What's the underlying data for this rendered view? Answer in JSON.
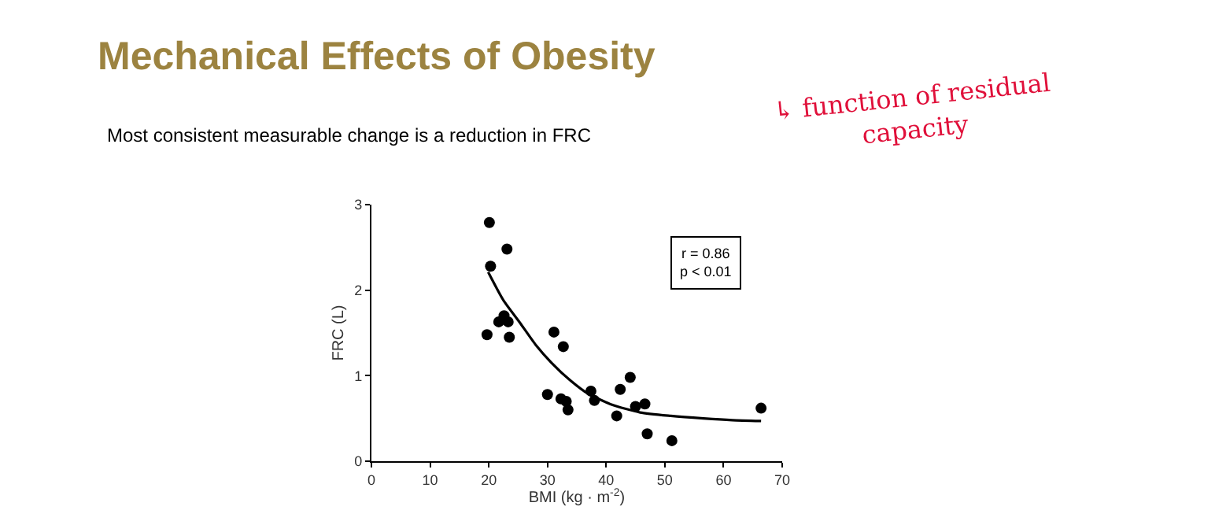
{
  "chart_data": {
    "type": "scatter",
    "title": "Mechanical Effects of Obesity",
    "subtitle": "Most consistent measurable change is a reduction in FRC",
    "xlabel": "BMI (kg · m$^{-2}$)",
    "ylabel": "FRC (L)",
    "xlim": [
      0,
      70
    ],
    "xticks": [
      0,
      10,
      20,
      30,
      40,
      50,
      60,
      70
    ],
    "ylim": [
      0,
      3
    ],
    "yticks": [
      0,
      1,
      2,
      3
    ],
    "marker": "circle",
    "annotations": [
      "r = 0.86\np < 0.01",
      "↳ function of residual\ncapacity"
    ],
    "series": [
      {
        "color": "#000000",
        "x": [
          20.1,
          23.1,
          20.3,
          19.7,
          21.7,
          22.6,
          23.3,
          23.5,
          31.1,
          32.7,
          30.0,
          32.3,
          33.2,
          33.5,
          37.4,
          38.0,
          42.4,
          44.1,
          41.8,
          45.0,
          46.6,
          47.0,
          51.2,
          66.4
        ],
        "values": [
          2.79,
          2.48,
          2.28,
          1.48,
          1.63,
          1.7,
          1.63,
          1.45,
          1.51,
          1.34,
          0.78,
          0.73,
          0.7,
          0.6,
          0.82,
          0.71,
          0.84,
          0.98,
          0.53,
          0.64,
          0.67,
          0.32,
          0.24,
          0.62
        ]
      },
      {
        "type": "line",
        "color": "#000000",
        "line_style": "solid",
        "marker": "none",
        "x": [
          19.9,
          22.5,
          25.3,
          28.0,
          30.7,
          33.8,
          36.9,
          41.0,
          45.8,
          51.0,
          56.6,
          61.5,
          66.4
        ],
        "values": [
          2.21,
          1.88,
          1.62,
          1.36,
          1.15,
          0.95,
          0.79,
          0.66,
          0.57,
          0.53,
          0.5,
          0.48,
          0.47
        ]
      }
    ]
  }
}
